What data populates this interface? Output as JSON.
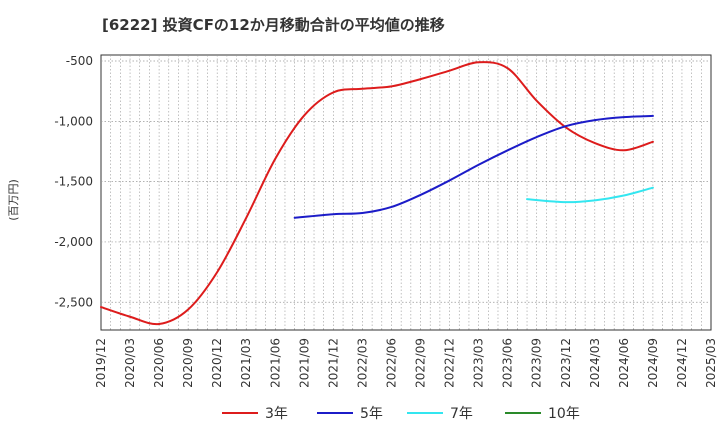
{
  "chart_data": {
    "type": "line",
    "title": "[6222]  投資CFの12か月移動合計の平均値の推移",
    "ylabel": "(百万円)",
    "xlabel": "",
    "ylim": [
      -2730,
      -450
    ],
    "yticks": [
      -500,
      -1000,
      -1500,
      -2000,
      -2500
    ],
    "ytick_labels": [
      "-500",
      "-1,000",
      "-1,500",
      "-2,000",
      "-2,500"
    ],
    "x_tick_labels": [
      "2019/12",
      "2020/03",
      "2020/06",
      "2020/09",
      "2020/12",
      "2021/03",
      "2021/06",
      "2021/09",
      "2021/12",
      "2022/03",
      "2022/06",
      "2022/09",
      "2022/12",
      "2023/03",
      "2023/06",
      "2023/09",
      "2023/12",
      "2024/03",
      "2024/06",
      "2024/09",
      "2024/12",
      "2025/03"
    ],
    "grid": true,
    "legend_position": "bottom",
    "series": [
      {
        "name": "3年",
        "color": "#dd1c1c",
        "points": [
          [
            "2019/12",
            -2540
          ],
          [
            "2020/03",
            -2620
          ],
          [
            "2020/06",
            -2680
          ],
          [
            "2020/09",
            -2560
          ],
          [
            "2020/12",
            -2250
          ],
          [
            "2021/03",
            -1800
          ],
          [
            "2021/06",
            -1310
          ],
          [
            "2021/09",
            -950
          ],
          [
            "2021/12",
            -760
          ],
          [
            "2022/03",
            -730
          ],
          [
            "2022/06",
            -710
          ],
          [
            "2022/09",
            -650
          ],
          [
            "2022/12",
            -580
          ],
          [
            "2023/03",
            -510
          ],
          [
            "2023/06",
            -560
          ],
          [
            "2023/09",
            -830
          ],
          [
            "2023/12",
            -1050
          ],
          [
            "2024/03",
            -1180
          ],
          [
            "2024/06",
            -1240
          ],
          [
            "2024/09",
            -1170
          ]
        ]
      },
      {
        "name": "5年",
        "color": "#1c1cc8",
        "points": [
          [
            "2021/08",
            -1800
          ],
          [
            "2021/12",
            -1770
          ],
          [
            "2022/03",
            -1760
          ],
          [
            "2022/06",
            -1710
          ],
          [
            "2022/09",
            -1610
          ],
          [
            "2022/12",
            -1490
          ],
          [
            "2023/03",
            -1360
          ],
          [
            "2023/06",
            -1240
          ],
          [
            "2023/09",
            -1130
          ],
          [
            "2023/12",
            -1040
          ],
          [
            "2024/03",
            -990
          ],
          [
            "2024/06",
            -965
          ],
          [
            "2024/09",
            -955
          ]
        ]
      },
      {
        "name": "7年",
        "color": "#33e6f0",
        "points": [
          [
            "2023/08",
            -1645
          ],
          [
            "2023/12",
            -1670
          ],
          [
            "2024/03",
            -1655
          ],
          [
            "2024/06",
            -1615
          ],
          [
            "2024/09",
            -1550
          ]
        ]
      },
      {
        "name": "10年",
        "color": "#2a8a2a",
        "points": []
      }
    ]
  }
}
